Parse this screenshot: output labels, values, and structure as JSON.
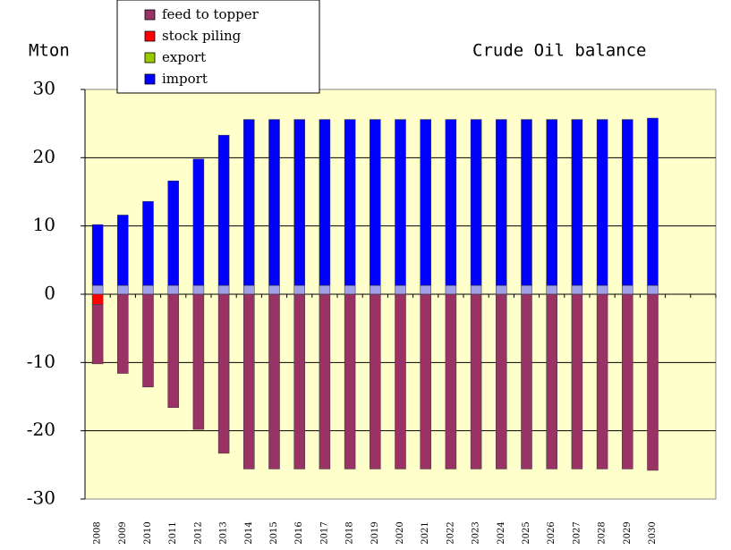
{
  "chart_data": {
    "type": "bar",
    "stacked": true,
    "title": "Crude Oil balance",
    "y_label": "Mton",
    "categories": [
      "2008",
      "2009",
      "2010",
      "2011",
      "2012",
      "2013",
      "2014",
      "2015",
      "2016",
      "2017",
      "2018",
      "2019",
      "2020",
      "2021",
      "2022",
      "2023",
      "2024",
      "2025",
      "2026",
      "2027",
      "2028",
      "2029",
      "2030",
      null,
      null
    ],
    "series": [
      {
        "name": "feed to topper",
        "color": "#993366",
        "values": [
          -8.7,
          -11.6,
          -13.6,
          -16.6,
          -19.8,
          -23.3,
          -25.6,
          -25.6,
          -25.6,
          -25.6,
          -25.6,
          -25.6,
          -25.6,
          -25.6,
          -25.6,
          -25.6,
          -25.6,
          -25.6,
          -25.6,
          -25.6,
          -25.6,
          -25.6,
          -25.8,
          null,
          null
        ]
      },
      {
        "name": "stock piling",
        "color": "#ff0000",
        "values": [
          -1.5,
          0,
          0,
          0,
          0,
          0,
          0,
          0,
          0,
          0,
          0,
          0,
          0,
          0,
          0,
          0,
          0,
          0,
          0,
          0,
          0,
          0,
          0,
          null,
          null
        ]
      },
      {
        "name": "export",
        "color": "#99cc00",
        "values": [
          0,
          0,
          0,
          0,
          0,
          0,
          0,
          0,
          0,
          0,
          0,
          0,
          0,
          0,
          0,
          0,
          0,
          0,
          0,
          0,
          0,
          0,
          0,
          null,
          null
        ]
      },
      {
        "name": "import",
        "color": "#0000ff",
        "values": [
          8.9,
          10.3,
          12.3,
          15.3,
          18.5,
          22.0,
          24.3,
          24.3,
          24.3,
          24.3,
          24.3,
          24.3,
          24.3,
          24.3,
          24.3,
          24.3,
          24.3,
          24.3,
          24.3,
          24.3,
          24.3,
          24.3,
          24.5,
          null,
          null
        ]
      },
      {
        "color": "#a0a0e8",
        "values": [
          1.3,
          1.3,
          1.3,
          1.3,
          1.3,
          1.3,
          1.3,
          1.3,
          1.3,
          1.3,
          1.3,
          1.3,
          1.3,
          1.3,
          1.3,
          1.3,
          1.3,
          1.3,
          1.3,
          1.3,
          1.3,
          1.3,
          1.3,
          null,
          null
        ]
      }
    ],
    "ylim": [
      -30,
      30
    ],
    "yticks": [
      -30,
      -20,
      -10,
      0,
      10,
      20,
      30
    ],
    "grid": true,
    "legend": "top"
  }
}
